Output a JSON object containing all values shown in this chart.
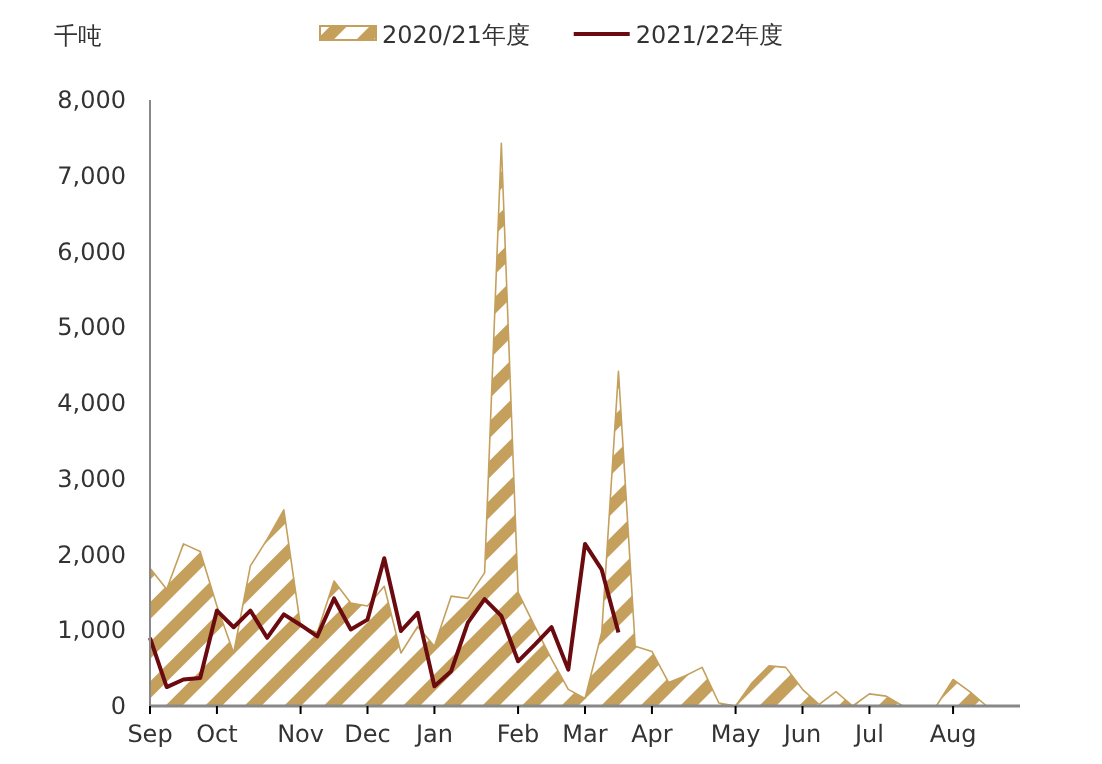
{
  "chart_data": {
    "type": "line",
    "ylabel": "千吨",
    "legend": "top",
    "categories": [
      "Sep",
      null,
      null,
      null,
      "Oct",
      null,
      null,
      null,
      null,
      "Nov",
      null,
      null,
      null,
      "Dec",
      null,
      null,
      null,
      "Jan",
      null,
      null,
      null,
      null,
      "Feb",
      null,
      null,
      null,
      "Mar",
      null,
      null,
      null,
      "Apr",
      null,
      null,
      null,
      null,
      "May",
      null,
      null,
      null,
      "Jun",
      null,
      null,
      null,
      "Jul",
      null,
      null,
      null,
      null,
      "Aug",
      null,
      null,
      null
    ],
    "ylim": [
      0,
      8000
    ],
    "yticks": [
      0,
      {
        "value": 1000,
        "label": "1,000"
      },
      {
        "value": 2000,
        "label": "2,000"
      },
      {
        "value": 3000,
        "label": "3,000"
      },
      {
        "value": 4000,
        "label": "4,000"
      },
      {
        "value": 5000,
        "label": "5,000"
      },
      {
        "value": 6000,
        "label": "6,000"
      },
      {
        "value": 7000,
        "label": "7,000"
      },
      {
        "value": 8000,
        "label": "8,000"
      }
    ],
    "grid": false,
    "series": [
      {
        "name": "2020/21年度",
        "type": "area",
        "color": "#c4a05c",
        "values": [
          1820,
          1540,
          2140,
          2040,
          1320,
          700,
          1850,
          2200,
          2590,
          1050,
          970,
          1650,
          1360,
          1320,
          1580,
          700,
          1050,
          790,
          1450,
          1420,
          1760,
          7430,
          1500,
          1050,
          620,
          220,
          100,
          970,
          4420,
          790,
          720,
          310,
          400,
          510,
          40,
          0,
          310,
          530,
          510,
          220,
          20,
          190,
          0,
          160,
          130,
          0,
          0,
          0,
          350,
          190,
          0,
          0
        ]
      },
      {
        "name": "2021/22年度",
        "color": "#6b0a0f",
        "values": [
          900,
          250,
          350,
          370,
          1260,
          1040,
          1260,
          900,
          1210,
          1070,
          920,
          1420,
          1010,
          1140,
          1950,
          990,
          1230,
          260,
          460,
          1100,
          1410,
          1190,
          590,
          810,
          1040,
          480,
          2140,
          1800,
          970,
          null,
          null,
          null,
          null,
          null,
          null,
          null,
          null,
          null,
          null,
          null,
          null,
          null,
          null,
          null,
          null,
          null,
          null,
          null,
          null,
          null,
          null,
          null
        ]
      }
    ]
  }
}
